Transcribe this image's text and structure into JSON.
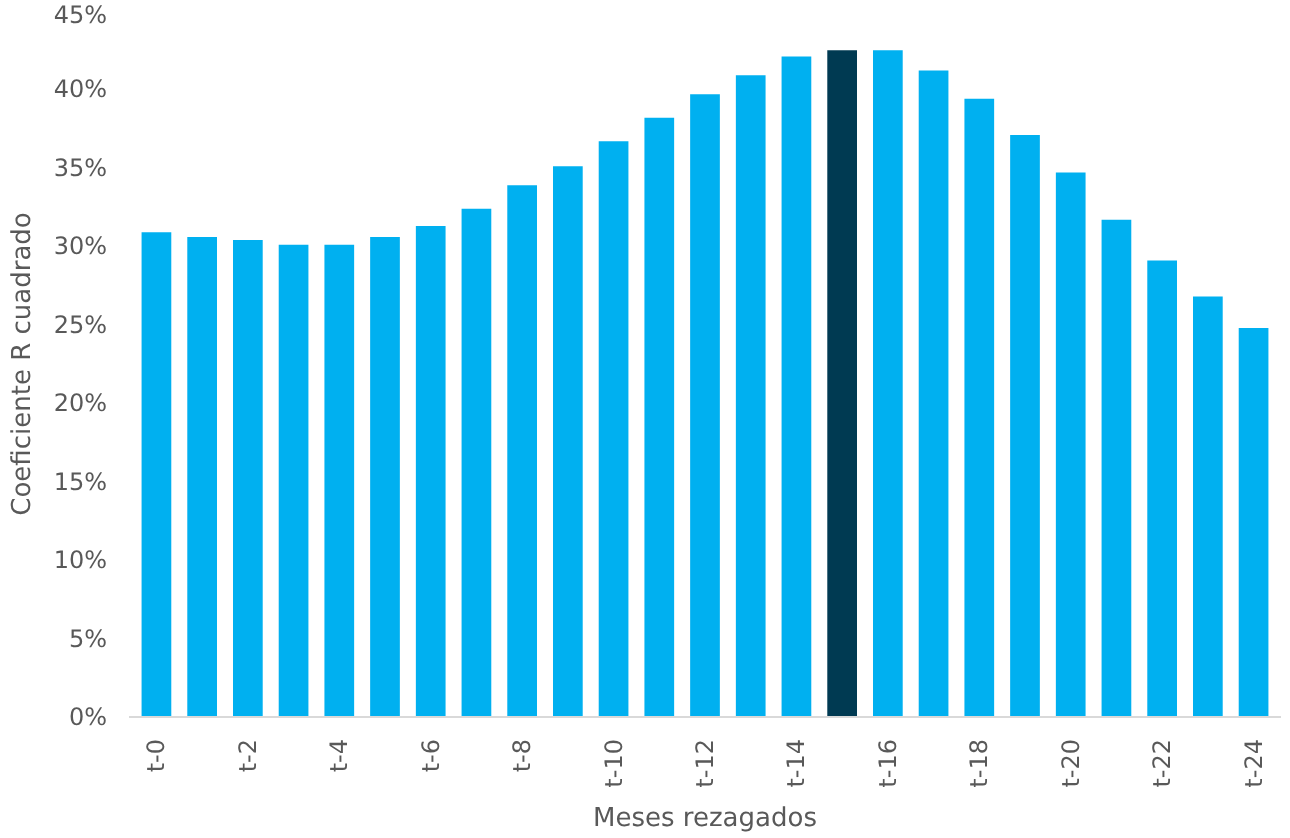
{
  "chart_data": {
    "type": "bar",
    "xlabel": "Meses rezagados",
    "ylabel": "Coeficiente R cuadrado",
    "categories": [
      "t-0",
      null,
      "t-2",
      null,
      "t-4",
      null,
      "t-6",
      null,
      "t-8",
      null,
      "t-10",
      null,
      "t-12",
      null,
      "t-14",
      null,
      "t-16",
      null,
      "t-18",
      null,
      "t-20",
      null,
      "t-22",
      null,
      "t-24"
    ],
    "values": [
      30.9,
      30.6,
      30.4,
      30.1,
      30.1,
      30.6,
      31.3,
      32.4,
      33.9,
      35.1,
      36.7,
      38.2,
      39.7,
      40.9,
      42.1,
      42.5,
      42.5,
      41.2,
      39.4,
      37.1,
      34.7,
      31.7,
      29.1,
      26.8,
      24.8
    ],
    "colors": [
      "#00b0f0",
      "#00b0f0",
      "#00b0f0",
      "#00b0f0",
      "#00b0f0",
      "#00b0f0",
      "#00b0f0",
      "#00b0f0",
      "#00b0f0",
      "#00b0f0",
      "#00b0f0",
      "#00b0f0",
      "#00b0f0",
      "#00b0f0",
      "#00b0f0",
      "#003a52",
      "#00b0f0",
      "#00b0f0",
      "#00b0f0",
      "#00b0f0",
      "#00b0f0",
      "#00b0f0",
      "#00b0f0",
      "#00b0f0",
      "#00b0f0"
    ],
    "ylim": [
      0,
      45
    ],
    "yticks": [
      {
        "value": 0,
        "label": "0%"
      },
      {
        "value": 5,
        "label": "5%"
      },
      {
        "value": 10,
        "label": "10%"
      },
      {
        "value": 15,
        "label": "15%"
      },
      {
        "value": 20,
        "label": "20%"
      },
      {
        "value": 25,
        "label": "25%"
      },
      {
        "value": 30,
        "label": "30%"
      },
      {
        "value": 35,
        "label": "35%"
      },
      {
        "value": 40,
        "label": "40%"
      },
      {
        "value": 45,
        "label": "45%"
      }
    ],
    "grid": false
  }
}
